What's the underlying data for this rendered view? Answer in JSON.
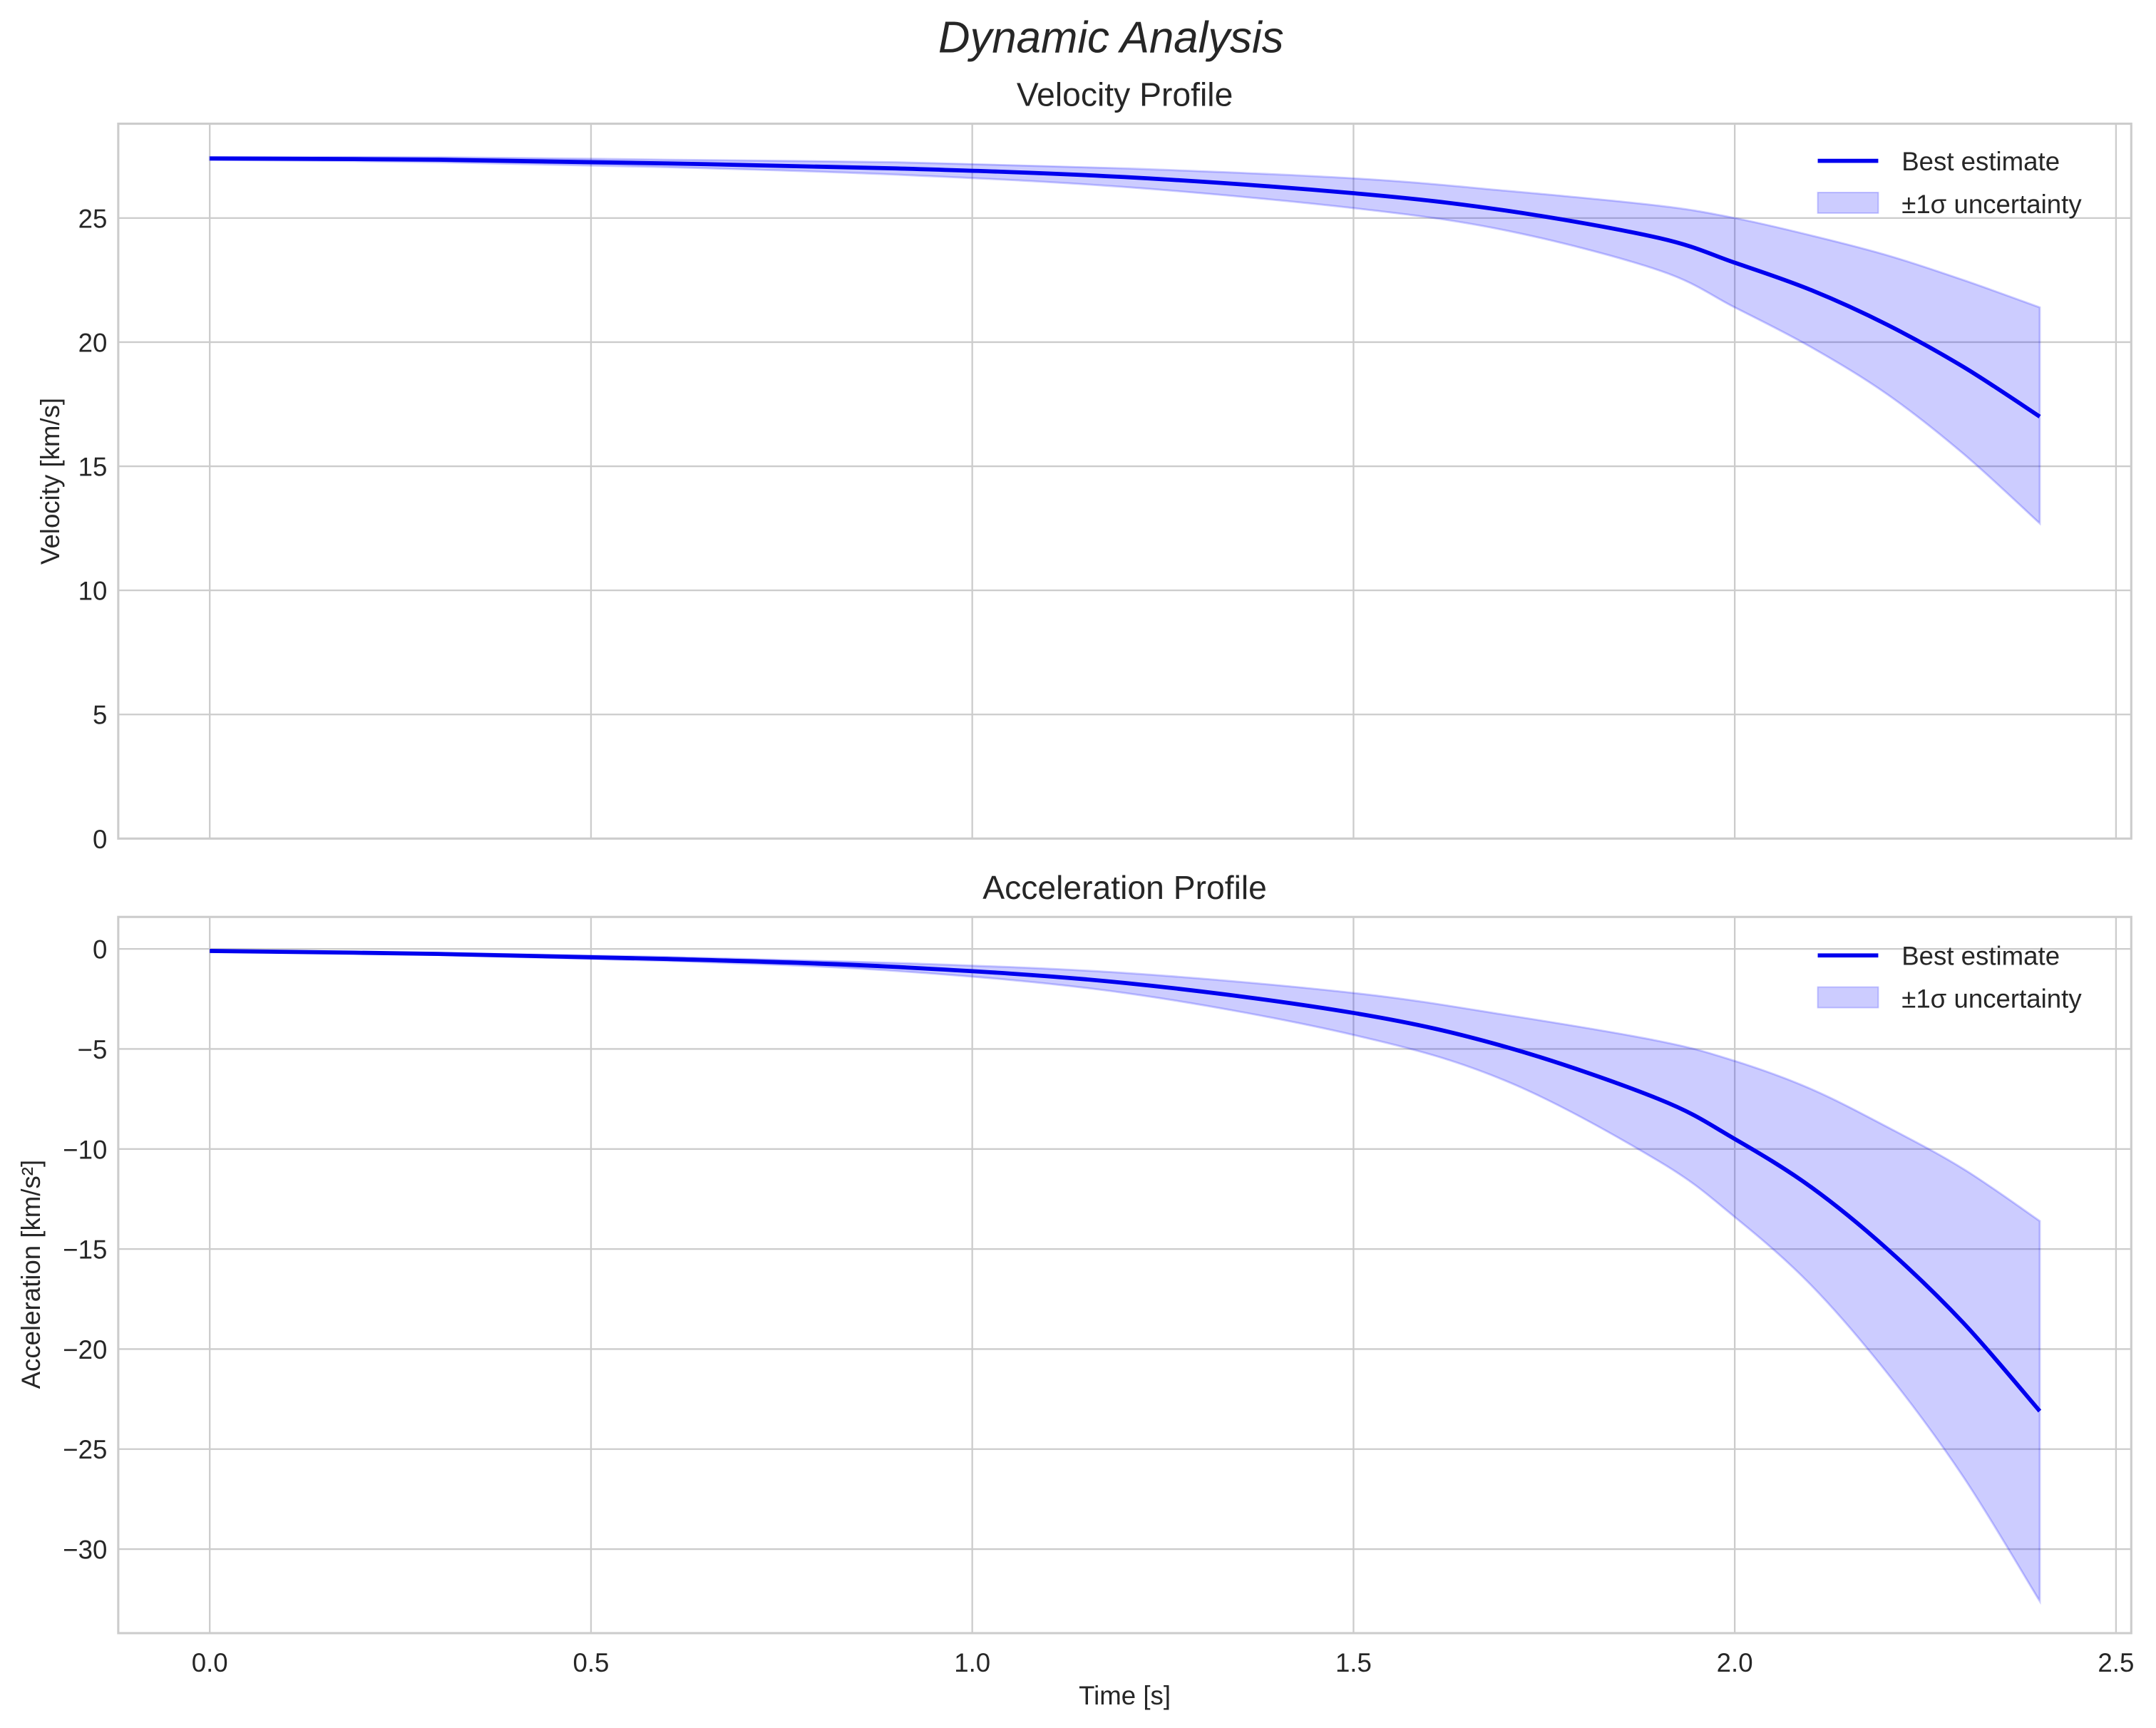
{
  "figure": {
    "suptitle": "Dynamic Analysis",
    "xlabel": "Time [s]"
  },
  "colors": {
    "line": "#0000ee",
    "band_fill": "#0000ff",
    "band_alpha": 0.2,
    "grid": "#cccccc",
    "text": "#262626"
  },
  "legend": {
    "line_label": "Best estimate",
    "band_label": "±1σ uncertainty"
  },
  "chart_data": [
    {
      "type": "line",
      "title": "Velocity Profile",
      "xlabel": "",
      "ylabel": "Velocity [km/s]",
      "xlim": [
        -0.12,
        2.52
      ],
      "ylim": [
        0,
        28.8
      ],
      "xticks": [
        "0.0",
        "0.5",
        "1.0",
        "1.5",
        "2.0",
        "2.5"
      ],
      "yticks": [
        "0",
        "5",
        "10",
        "15",
        "20",
        "25"
      ],
      "grid": true,
      "legend_position": "upper right",
      "x": [
        0.0,
        0.3,
        0.6,
        0.9,
        1.2,
        1.5,
        1.7,
        1.9,
        2.0,
        2.1,
        2.2,
        2.3,
        2.4
      ],
      "series": [
        {
          "name": "Best estimate",
          "values": [
            27.4,
            27.35,
            27.2,
            27.0,
            26.65,
            26.0,
            25.3,
            24.2,
            23.2,
            22.1,
            20.7,
            19.0,
            17.0
          ]
        },
        {
          "name": "±1σ upper",
          "values": [
            27.45,
            27.45,
            27.35,
            27.25,
            27.0,
            26.6,
            26.1,
            25.5,
            25.0,
            24.3,
            23.5,
            22.5,
            21.4
          ]
        },
        {
          "name": "±1σ lower",
          "values": [
            27.35,
            27.25,
            27.05,
            26.75,
            26.25,
            25.4,
            24.5,
            22.9,
            21.4,
            19.8,
            17.9,
            15.5,
            12.7
          ]
        }
      ]
    },
    {
      "type": "line",
      "title": "Acceleration Profile",
      "xlabel": "Time [s]",
      "ylabel": "Acceleration [km/s²]",
      "xlim": [
        -0.12,
        2.52
      ],
      "ylim": [
        -34.2,
        1.6
      ],
      "xticks": [
        "0.0",
        "0.5",
        "1.0",
        "1.5",
        "2.0",
        "2.5"
      ],
      "yticks": [
        "0",
        "−5",
        "−10",
        "−15",
        "−20",
        "−25",
        "−30"
      ],
      "grid": true,
      "legend_position": "upper right",
      "x": [
        0.0,
        0.3,
        0.6,
        0.9,
        1.2,
        1.5,
        1.7,
        1.9,
        2.0,
        2.1,
        2.2,
        2.3,
        2.4
      ],
      "series": [
        {
          "name": "Best estimate",
          "values": [
            -0.1,
            -0.25,
            -0.5,
            -0.9,
            -1.7,
            -3.2,
            -4.9,
            -7.5,
            -9.5,
            -11.9,
            -15.0,
            -18.7,
            -23.1
          ]
        },
        {
          "name": "±1σ upper",
          "values": [
            -0.1,
            -0.2,
            -0.4,
            -0.7,
            -1.2,
            -2.2,
            -3.3,
            -4.6,
            -5.6,
            -7.0,
            -8.9,
            -11.0,
            -13.6
          ]
        },
        {
          "name": "±1σ lower",
          "values": [
            -0.1,
            -0.3,
            -0.6,
            -1.1,
            -2.2,
            -4.3,
            -6.6,
            -10.6,
            -13.4,
            -16.8,
            -21.2,
            -26.4,
            -32.6
          ]
        }
      ]
    }
  ]
}
